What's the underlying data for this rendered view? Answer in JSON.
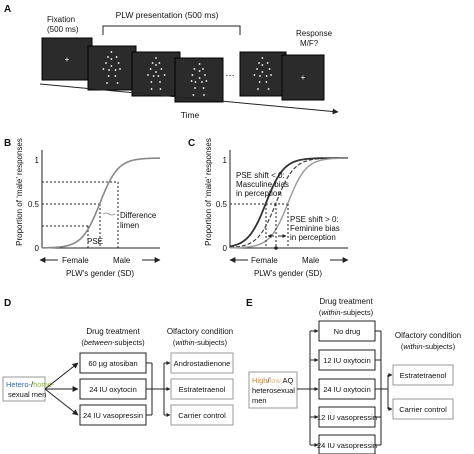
{
  "panels": {
    "a": "A",
    "b": "B",
    "c": "C",
    "d": "D",
    "e": "E"
  },
  "panel_a": {
    "fixation": "Fixation",
    "fixation_ms": "(500 ms)",
    "plw_presentation": "PLW presentation (500 ms)",
    "response": "Response",
    "response_mf": "M/F?",
    "ellipsis": "…",
    "time": "Time",
    "screen_bg": "#2b2b2b"
  },
  "panel_b": {
    "ylabel": "Proportion of ‘male’ responses",
    "y_ticks": [
      "1",
      "0.5",
      "0"
    ],
    "pse": "PSE",
    "difference": "Difference",
    "limen": "limen",
    "female": "Female",
    "male": "Male",
    "xlabel": "PLW's gender (SD)"
  },
  "panel_c": {
    "ylabel": "Proportion of ‘male’ responses",
    "y_ticks": [
      "1",
      "0.5",
      "0"
    ],
    "pse_neg_1": "PSE shift < 0:",
    "pse_neg_2": "Masculine bias",
    "pse_neg_3": "in perception",
    "pse_pos_1": "PSE shift > 0:",
    "pse_pos_2": "Feminine bias",
    "pse_pos_3": "in perception",
    "female": "Female",
    "male": "Male",
    "xlabel": "PLW's gender (SD)"
  },
  "panel_d": {
    "drug_header": "Drug treatment",
    "drug_sub_pre": "(",
    "drug_sub_em": "between",
    "drug_sub_post": "-subjects)",
    "olf_header": "Olfactory condition",
    "olf_sub_pre": "(",
    "olf_sub_em": "within",
    "olf_sub_post": "-subjects)",
    "subject_hetero": "Hetero-",
    "subject_slash": "/",
    "subject_homo": "homo-",
    "subject_line2": "sexual men",
    "drugs": [
      "60 µg atosiban",
      "24 IU oxytocin",
      "24 IU vasopressin"
    ],
    "odors": [
      "Androstadienone",
      "Estratetraenol",
      "Carrier control"
    ],
    "color_hetero": "#2e6fb5",
    "color_homo": "#8ab832",
    "color_andro": "#2c3e99",
    "color_estra": "#d23a2a",
    "color_carrier": "#444444"
  },
  "panel_e": {
    "drug_header": "Drug treatment",
    "drug_sub_pre": "(",
    "drug_sub_em": "within",
    "drug_sub_post": "-subjects)",
    "olf_header": "Olfactory condition",
    "olf_sub_pre": "(",
    "olf_sub_em": "within",
    "olf_sub_post": "-subjects)",
    "subject_high": "High",
    "subject_slash": "/",
    "subject_low": "low",
    "subject_aq": " AQ",
    "subject_line2": "heterosexual",
    "subject_line3": "men",
    "drugs": [
      "No drug",
      "12 IU oxytocin",
      "24 IU oxytocin",
      "12 IU vasopressin",
      "24 IU vasopressin"
    ],
    "odors": [
      "Estratetraenol",
      "Carrier control"
    ],
    "color_high": "#d9852a",
    "color_low": "#e8b98a",
    "color_hetero": "#2e6fb5",
    "color_estra": "#d23a2a",
    "color_carrier": "#444444"
  }
}
